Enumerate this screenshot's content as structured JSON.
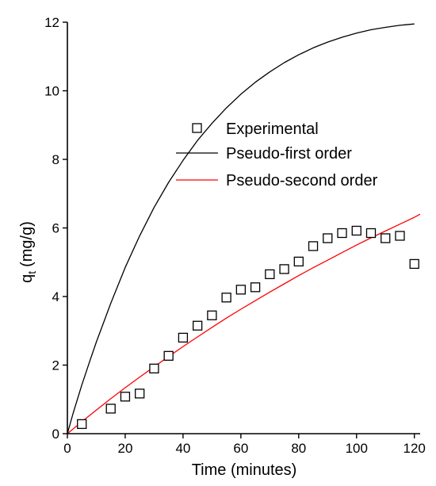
{
  "chart_data": {
    "type": "scatter",
    "title": "",
    "xlabel": "Time (minutes)",
    "ylabel": "q",
    "ylabel_subscript": "t",
    "ylabel_unit": "(mg/g)",
    "xlim": [
      0,
      122
    ],
    "ylim": [
      0,
      12
    ],
    "x_ticks": [
      0,
      20,
      40,
      60,
      80,
      100,
      120
    ],
    "y_ticks": [
      0,
      2,
      4,
      6,
      8,
      10,
      12
    ],
    "grid": false,
    "legend_position": "center-right",
    "series": [
      {
        "name": "Experimental",
        "kind": "markers",
        "marker": "square-open",
        "color": "#000000",
        "x": [
          5,
          15,
          20,
          25,
          30,
          35,
          40,
          45,
          50,
          55,
          60,
          65,
          70,
          75,
          80,
          85,
          90,
          95,
          100,
          105,
          110,
          115,
          120
        ],
        "y": [
          0.28,
          0.73,
          1.08,
          1.17,
          1.9,
          2.27,
          2.8,
          3.15,
          3.45,
          3.97,
          4.2,
          4.27,
          4.65,
          4.8,
          5.02,
          5.47,
          5.7,
          5.85,
          5.92,
          5.85,
          5.7,
          5.77,
          4.95
        ]
      },
      {
        "name": "Pseudo-first order",
        "kind": "line",
        "color": "#000000",
        "x": [
          0,
          2,
          5,
          8,
          10,
          15,
          20,
          25,
          30,
          35,
          40,
          45,
          50,
          55,
          60,
          65,
          70,
          75,
          80,
          85,
          90,
          95,
          100,
          105,
          110,
          115,
          120
        ],
        "y": [
          0,
          0.6,
          1.42,
          2.18,
          2.67,
          3.8,
          4.85,
          5.77,
          6.6,
          7.33,
          7.97,
          8.55,
          9.05,
          9.5,
          9.9,
          10.25,
          10.55,
          10.82,
          11.05,
          11.25,
          11.42,
          11.56,
          11.68,
          11.78,
          11.85,
          11.91,
          11.95
        ]
      },
      {
        "name": "Pseudo-second order",
        "kind": "line",
        "color": "#ff0000",
        "x": [
          0,
          5,
          10,
          15,
          20,
          25,
          30,
          35,
          40,
          45,
          50,
          55,
          60,
          65,
          70,
          75,
          80,
          85,
          90,
          95,
          100,
          105,
          110,
          115,
          120,
          122
        ],
        "y": [
          0,
          0.35,
          0.69,
          1.02,
          1.34,
          1.65,
          1.95,
          2.25,
          2.54,
          2.82,
          3.1,
          3.37,
          3.63,
          3.88,
          4.13,
          4.37,
          4.61,
          4.84,
          5.06,
          5.28,
          5.5,
          5.71,
          5.91,
          6.11,
          6.31,
          6.4
        ]
      }
    ]
  }
}
